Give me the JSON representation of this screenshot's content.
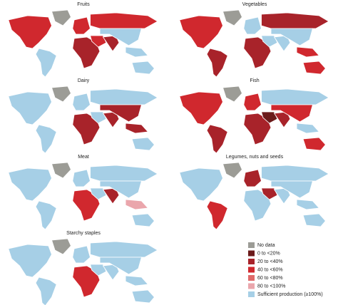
{
  "panels": [
    {
      "title": "Fruits"
    },
    {
      "title": "Vegetables"
    },
    {
      "title": "Dairy"
    },
    {
      "title": "Fish"
    },
    {
      "title": "Meat"
    },
    {
      "title": "Legumes, nuts and seeds"
    },
    {
      "title": "Starchy staples"
    }
  ],
  "legend": {
    "items": [
      {
        "label": "No data",
        "color": "#9c9c96"
      },
      {
        "label": "0 to <20%",
        "color": "#6b1a1a"
      },
      {
        "label": "20 to <40%",
        "color": "#a8232a"
      },
      {
        "label": "40 to <60%",
        "color": "#d0282e"
      },
      {
        "label": "60 to <80%",
        "color": "#e06a6a"
      },
      {
        "label": "80 to <100%",
        "color": "#eaa6ac"
      },
      {
        "label": "Sufficient production (≥100%)",
        "color": "#a6cfe6"
      }
    ]
  }
}
